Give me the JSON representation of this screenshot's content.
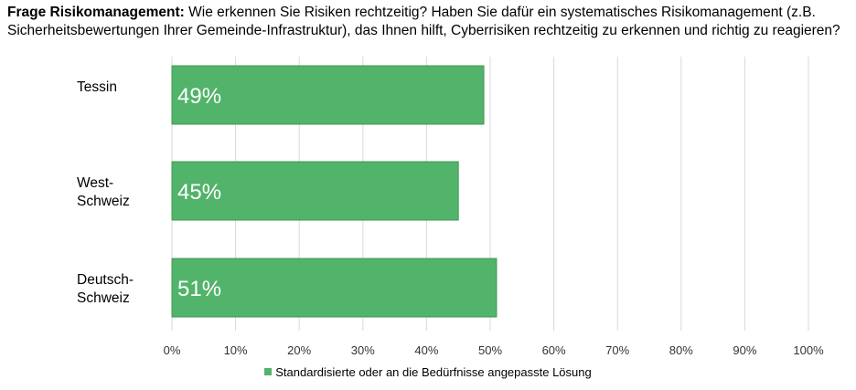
{
  "title": {
    "lead": "Frage Risikomanagement:",
    "text": " Wie erkennen Sie Risiken rechtzeitig? Haben Sie dafür ein systematisches Risikomanagement (z.B. Sicherheitsbewertungen Ihrer Gemeinde-Infrastruktur), das Ihnen hilft, Cyberrisiken rechtzeitig zu erkennen und richtig zu reagieren?"
  },
  "chart_data": {
    "type": "bar",
    "orientation": "horizontal",
    "categories": [
      {
        "line1": "Tessin",
        "line2": ""
      },
      {
        "line1": "West-",
        "line2": "Schweiz"
      },
      {
        "line1": "Deutsch-",
        "line2": "Schweiz"
      }
    ],
    "series": [
      {
        "name": "Standardisierte oder an die Bedürfnisse angepasste Lösung",
        "values": [
          49,
          45,
          51
        ],
        "labels": [
          "49%",
          "45%",
          "51%"
        ],
        "color": "#52b36a"
      }
    ],
    "xlim": [
      0,
      100
    ],
    "ticks": [
      0,
      10,
      20,
      30,
      40,
      50,
      60,
      70,
      80,
      90,
      100
    ],
    "tick_labels": [
      "0%",
      "10%",
      "20%",
      "30%",
      "40%",
      "50%",
      "60%",
      "70%",
      "80%",
      "90%",
      "100%"
    ],
    "grid": true,
    "legend_position": "bottom"
  }
}
